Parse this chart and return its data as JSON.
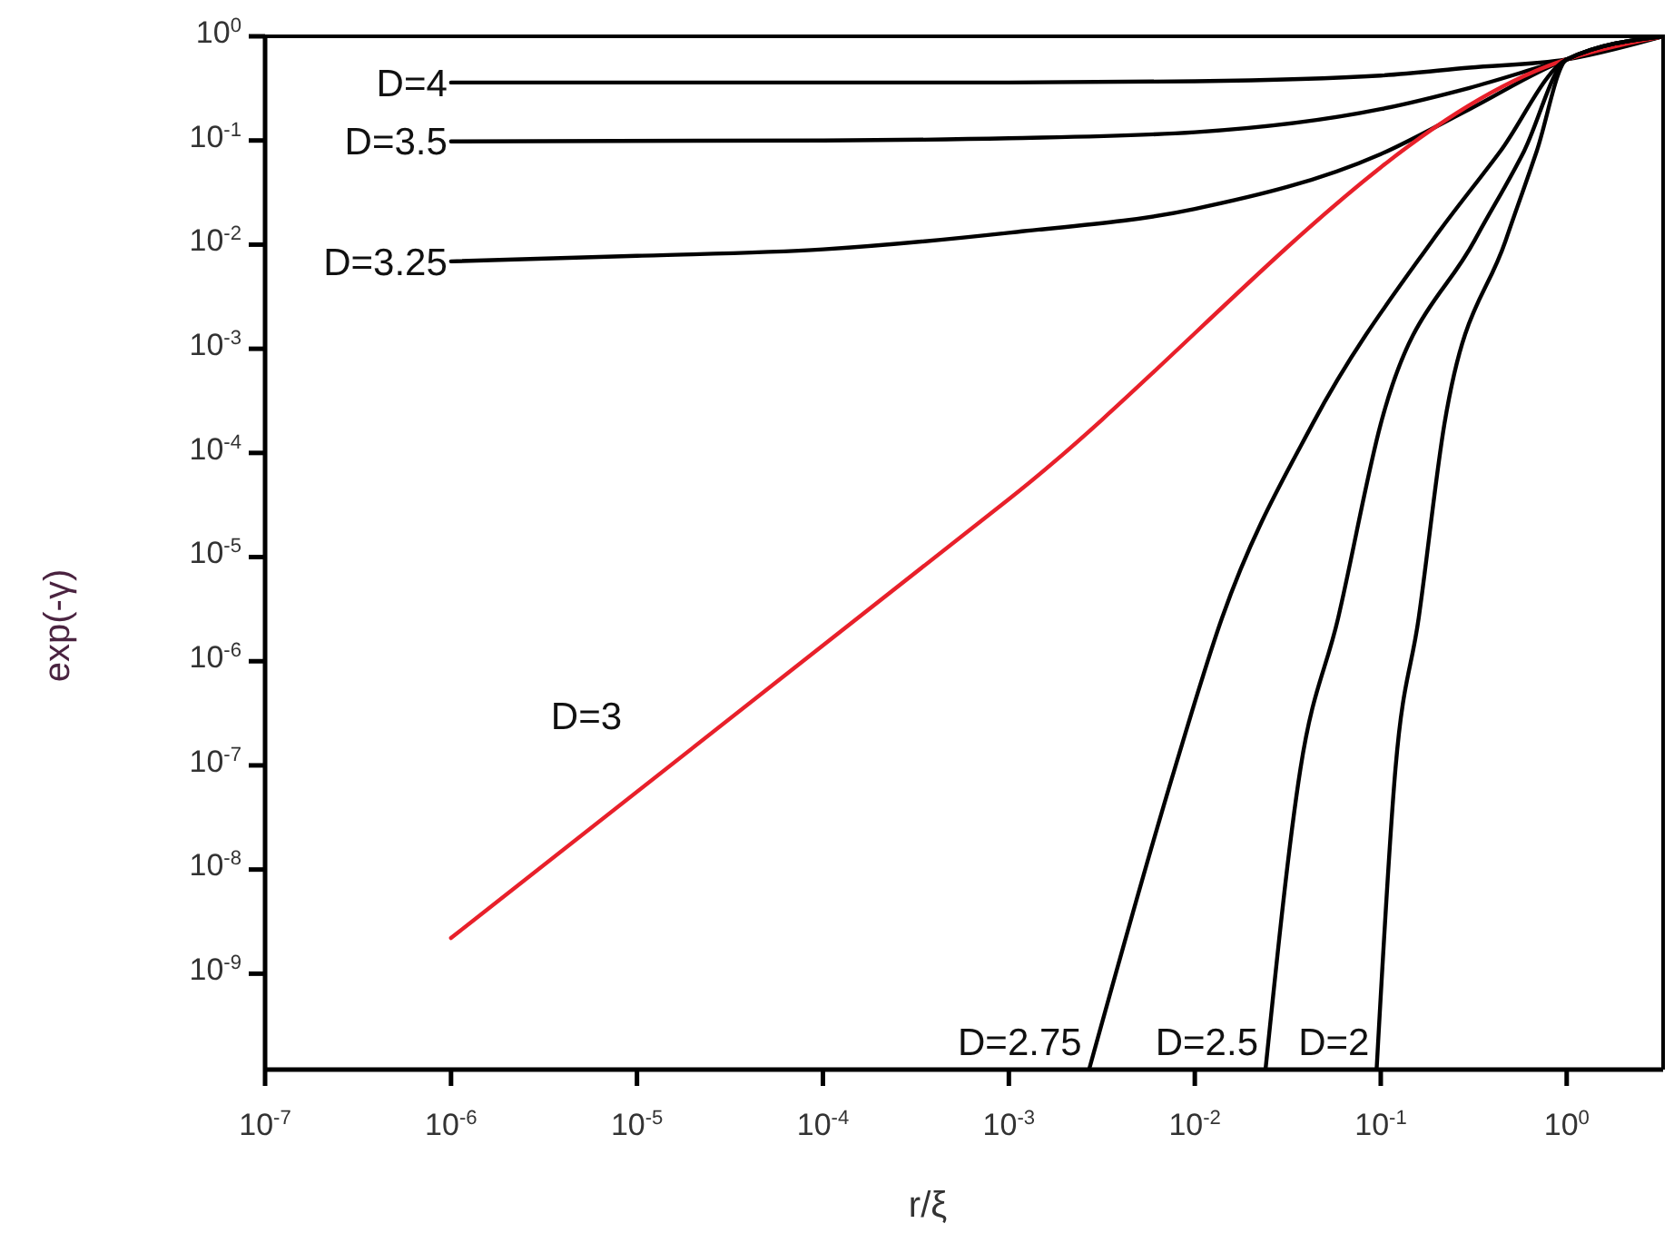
{
  "chart_data": {
    "type": "line",
    "xlabel": "r/ξ",
    "ylabel": "exp(-γ)",
    "log": "xy",
    "grid": false,
    "marker": "none",
    "line_style": "solid",
    "xlim": [
      1e-07,
      3.3
    ],
    "ylim": [
      1.2e-10,
      1
    ],
    "xticks": [
      {
        "value": 1e-07,
        "label": "10$^{-7}$"
      },
      {
        "value": 1e-06,
        "label": "10$^{-6}$"
      },
      {
        "value": 1e-05,
        "label": "10$^{-5}$"
      },
      {
        "value": 0.0001,
        "label": "10$^{-4}$"
      },
      {
        "value": 0.001,
        "label": "10$^{-3}$"
      },
      {
        "value": 0.01,
        "label": "10$^{-2}$"
      },
      {
        "value": 0.1,
        "label": "10$^{-1}$"
      },
      {
        "value": 1,
        "label": "10$^{0}$"
      }
    ],
    "yticks": [
      {
        "value": 1,
        "label": "10$^{0}$"
      },
      {
        "value": 0.1,
        "label": "10$^{-1}$"
      },
      {
        "value": 0.01,
        "label": "10$^{-2}$"
      },
      {
        "value": 0.001,
        "label": "10$^{-3}$"
      },
      {
        "value": 0.0001,
        "label": "10$^{-4}$"
      },
      {
        "value": 1e-05,
        "label": "10$^{-5}$"
      },
      {
        "value": 1e-06,
        "label": "10$^{-6}$"
      },
      {
        "value": 1e-07,
        "label": "10$^{-7}$"
      },
      {
        "value": 1e-08,
        "label": "10$^{-8}$"
      },
      {
        "value": 1e-09,
        "label": "10$^{-9}$"
      }
    ],
    "series": [
      {
        "name": "D=4",
        "color": "#000000",
        "x": [
          1e-06,
          0.001,
          0.01,
          0.1,
          0.3,
          1,
          3.3
        ],
        "values": [
          0.36,
          0.36,
          0.37,
          0.42,
          0.5,
          0.6,
          1
        ]
      },
      {
        "name": "D=3.5",
        "color": "#000000",
        "x": [
          1e-06,
          0.0001,
          0.001,
          0.01,
          0.1,
          0.3,
          1,
          3.3
        ],
        "values": [
          0.098,
          0.1,
          0.105,
          0.12,
          0.2,
          0.32,
          0.6,
          1
        ]
      },
      {
        "name": "D=3.25",
        "color": "#000000",
        "x": [
          1e-06,
          1e-05,
          0.0001,
          0.001,
          0.01,
          0.1,
          0.3,
          1,
          3.3
        ],
        "values": [
          0.0069,
          0.0078,
          0.009,
          0.013,
          0.022,
          0.074,
          0.2,
          0.6,
          1
        ]
      },
      {
        "name": "D=3",
        "color": "#e8202a",
        "x": [
          1e-06,
          0.001,
          1,
          3.3
        ],
        "values": [
          2.2e-09,
          3.6e-05,
          0.6,
          1
        ]
      },
      {
        "name": "D=2.75",
        "color": "#000000",
        "x": [
          0.0027,
          0.0078,
          0.014,
          0.043,
          0.19,
          0.44,
          1,
          3.3
        ],
        "values": [
          1.2e-10,
          9.3e-08,
          2.6e-06,
          0.00019,
          0.011,
          0.079,
          0.6,
          1
        ]
      },
      {
        "name": "D=2.5",
        "color": "#000000",
        "x": [
          0.024,
          0.037,
          0.059,
          0.1,
          0.32,
          0.59,
          1,
          3.3
        ],
        "values": [
          1.2e-10,
          9.3e-08,
          2.6e-06,
          0.00019,
          0.011,
          0.079,
          0.6,
          1
        ]
      },
      {
        "name": "D=2",
        "color": "#000000",
        "x": [
          0.095,
          0.12,
          0.16,
          0.22,
          0.47,
          0.69,
          1,
          3.3
        ],
        "values": [
          1.2e-10,
          9.3e-08,
          2.6e-06,
          0.00019,
          0.011,
          0.079,
          0.6,
          1
        ]
      }
    ]
  }
}
